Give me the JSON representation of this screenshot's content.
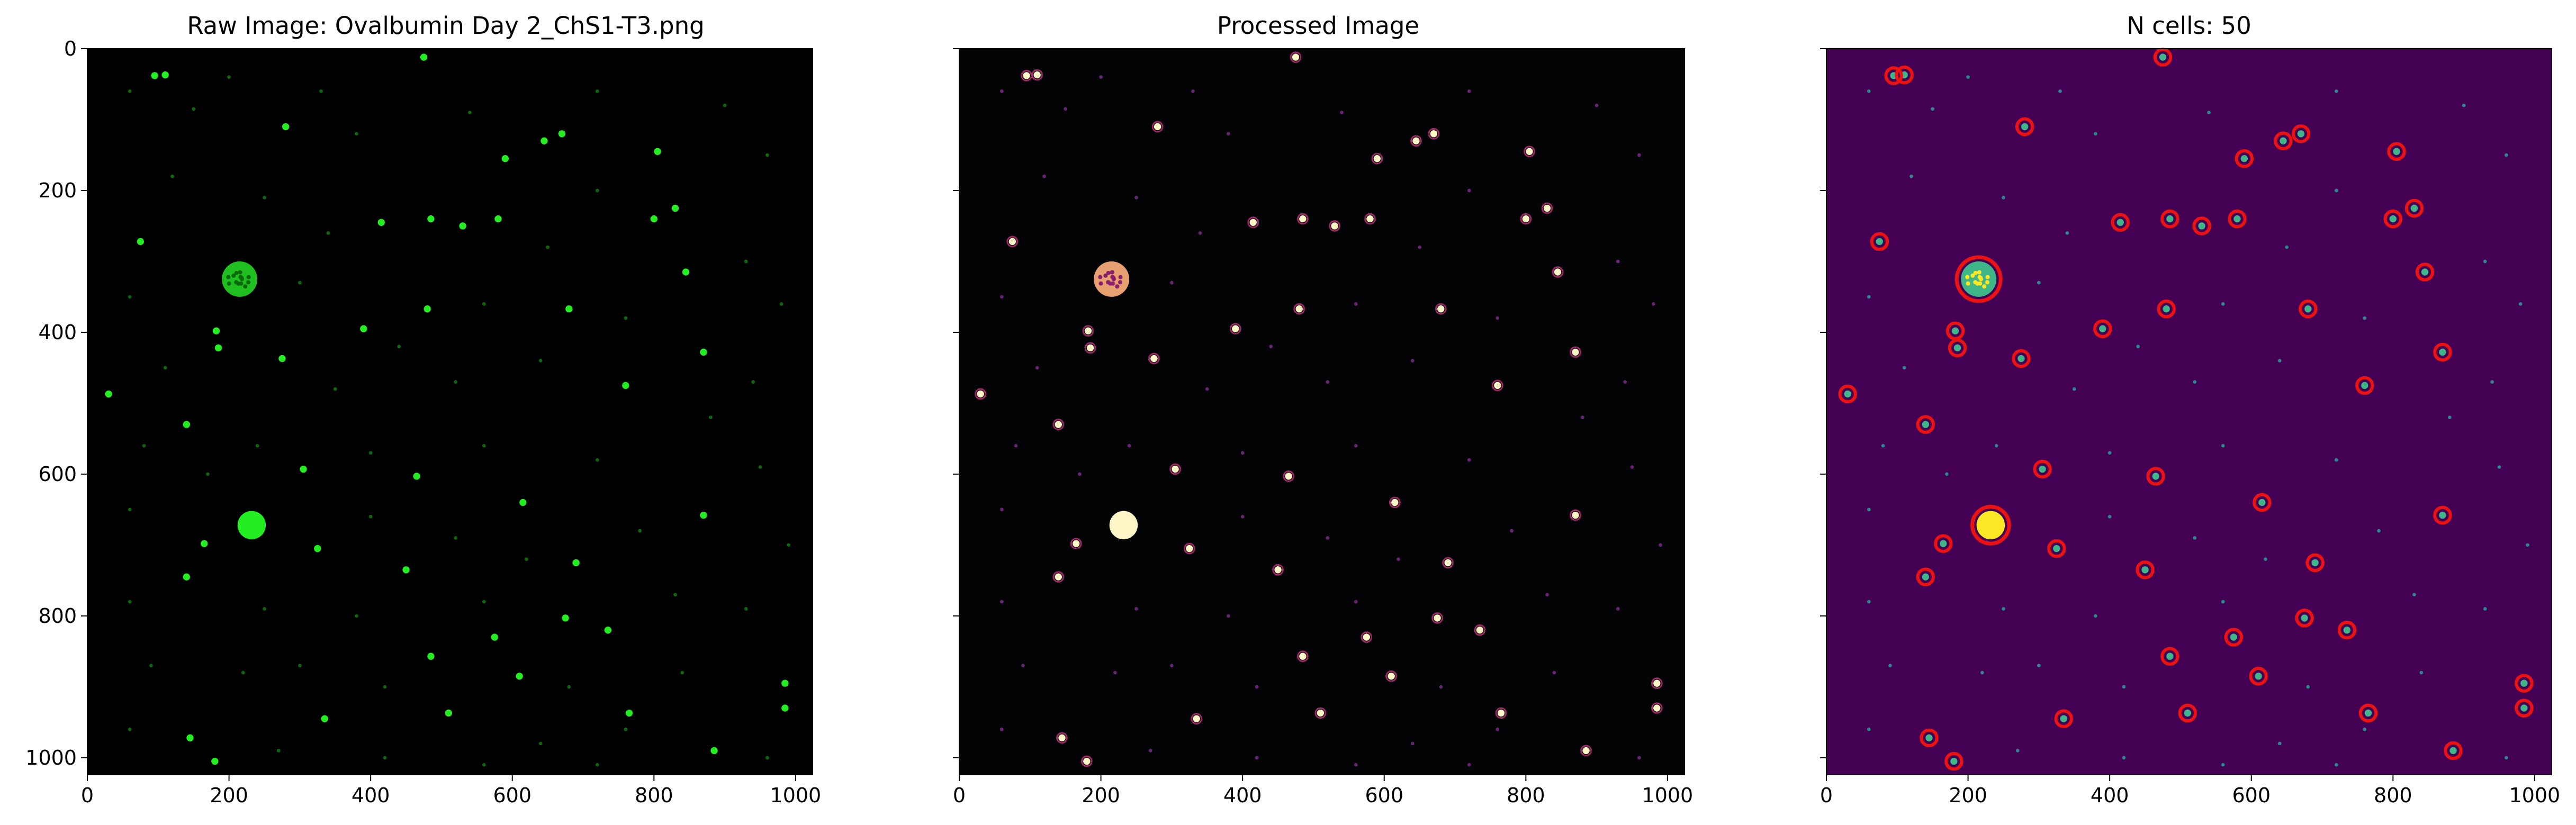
{
  "colors": {
    "raw_background": "#000000",
    "raw_cell": "#22ee22",
    "processed_background": "#040306",
    "processed_low": "#7a2a8a",
    "processed_high": "#fcf6c6",
    "overlay_background": "#440154",
    "overlay_cell": "#2a9d9a",
    "overlay_hot": "#fde725",
    "circle": "#ee1111",
    "axis": "#000000"
  },
  "panels": [
    {
      "title": "Raw Image: Ovalbumin Day 2_ChS1-T3.png",
      "colormap": "green"
    },
    {
      "title": "Processed Image",
      "colormap": "magma"
    },
    {
      "title": "N cells: 50",
      "colormap": "viridis"
    }
  ],
  "axes": {
    "x_ticks": [
      "0",
      "200",
      "400",
      "600",
      "800",
      "1000"
    ],
    "y_ticks": [
      "0",
      "200",
      "400",
      "600",
      "800",
      "1000"
    ]
  },
  "chart_data": {
    "type": "scatter",
    "image_extent": {
      "x": [
        0,
        1024
      ],
      "y": [
        0,
        1024
      ]
    },
    "y_inverted": true,
    "large_cells": [
      {
        "x": 215,
        "y": 325,
        "r": 25,
        "texture": "speckled"
      },
      {
        "x": 232,
        "y": 672,
        "r": 20,
        "texture": "solid"
      }
    ],
    "detected_cells": [
      {
        "x": 95,
        "y": 38
      },
      {
        "x": 110,
        "y": 37
      },
      {
        "x": 475,
        "y": 12
      },
      {
        "x": 280,
        "y": 110
      },
      {
        "x": 590,
        "y": 155
      },
      {
        "x": 645,
        "y": 130
      },
      {
        "x": 670,
        "y": 120
      },
      {
        "x": 805,
        "y": 145
      },
      {
        "x": 75,
        "y": 272
      },
      {
        "x": 415,
        "y": 245
      },
      {
        "x": 485,
        "y": 240
      },
      {
        "x": 530,
        "y": 250
      },
      {
        "x": 580,
        "y": 240
      },
      {
        "x": 800,
        "y": 240
      },
      {
        "x": 830,
        "y": 225
      },
      {
        "x": 845,
        "y": 315
      },
      {
        "x": 480,
        "y": 367
      },
      {
        "x": 680,
        "y": 367
      },
      {
        "x": 390,
        "y": 395
      },
      {
        "x": 182,
        "y": 398
      },
      {
        "x": 185,
        "y": 422
      },
      {
        "x": 275,
        "y": 437
      },
      {
        "x": 870,
        "y": 428
      },
      {
        "x": 30,
        "y": 487
      },
      {
        "x": 760,
        "y": 475
      },
      {
        "x": 140,
        "y": 530
      },
      {
        "x": 305,
        "y": 593
      },
      {
        "x": 465,
        "y": 603
      },
      {
        "x": 615,
        "y": 640
      },
      {
        "x": 870,
        "y": 658
      },
      {
        "x": 165,
        "y": 698
      },
      {
        "x": 325,
        "y": 705
      },
      {
        "x": 690,
        "y": 725
      },
      {
        "x": 140,
        "y": 745
      },
      {
        "x": 450,
        "y": 735
      },
      {
        "x": 675,
        "y": 803
      },
      {
        "x": 735,
        "y": 820
      },
      {
        "x": 575,
        "y": 830
      },
      {
        "x": 485,
        "y": 857
      },
      {
        "x": 610,
        "y": 885
      },
      {
        "x": 985,
        "y": 895
      },
      {
        "x": 985,
        "y": 930
      },
      {
        "x": 510,
        "y": 937
      },
      {
        "x": 765,
        "y": 937
      },
      {
        "x": 335,
        "y": 945
      },
      {
        "x": 145,
        "y": 972
      },
      {
        "x": 885,
        "y": 990
      },
      {
        "x": 180,
        "y": 1005
      }
    ],
    "faint_spots": [
      {
        "x": 60,
        "y": 60
      },
      {
        "x": 150,
        "y": 85
      },
      {
        "x": 200,
        "y": 40
      },
      {
        "x": 330,
        "y": 60
      },
      {
        "x": 380,
        "y": 120
      },
      {
        "x": 540,
        "y": 90
      },
      {
        "x": 720,
        "y": 60
      },
      {
        "x": 900,
        "y": 80
      },
      {
        "x": 960,
        "y": 150
      },
      {
        "x": 120,
        "y": 180
      },
      {
        "x": 250,
        "y": 210
      },
      {
        "x": 340,
        "y": 260
      },
      {
        "x": 650,
        "y": 280
      },
      {
        "x": 720,
        "y": 200
      },
      {
        "x": 930,
        "y": 300
      },
      {
        "x": 60,
        "y": 350
      },
      {
        "x": 300,
        "y": 330
      },
      {
        "x": 560,
        "y": 360
      },
      {
        "x": 760,
        "y": 380
      },
      {
        "x": 980,
        "y": 360
      },
      {
        "x": 110,
        "y": 450
      },
      {
        "x": 350,
        "y": 480
      },
      {
        "x": 520,
        "y": 470
      },
      {
        "x": 640,
        "y": 440
      },
      {
        "x": 940,
        "y": 470
      },
      {
        "x": 80,
        "y": 560
      },
      {
        "x": 240,
        "y": 560
      },
      {
        "x": 400,
        "y": 570
      },
      {
        "x": 560,
        "y": 560
      },
      {
        "x": 720,
        "y": 580
      },
      {
        "x": 950,
        "y": 590
      },
      {
        "x": 60,
        "y": 650
      },
      {
        "x": 400,
        "y": 660
      },
      {
        "x": 520,
        "y": 690
      },
      {
        "x": 780,
        "y": 680
      },
      {
        "x": 990,
        "y": 700
      },
      {
        "x": 60,
        "y": 780
      },
      {
        "x": 250,
        "y": 790
      },
      {
        "x": 380,
        "y": 800
      },
      {
        "x": 560,
        "y": 780
      },
      {
        "x": 830,
        "y": 770
      },
      {
        "x": 930,
        "y": 790
      },
      {
        "x": 90,
        "y": 870
      },
      {
        "x": 220,
        "y": 880
      },
      {
        "x": 420,
        "y": 900
      },
      {
        "x": 680,
        "y": 900
      },
      {
        "x": 840,
        "y": 880
      },
      {
        "x": 60,
        "y": 960
      },
      {
        "x": 270,
        "y": 990
      },
      {
        "x": 420,
        "y": 1000
      },
      {
        "x": 640,
        "y": 980
      },
      {
        "x": 720,
        "y": 1010
      },
      {
        "x": 960,
        "y": 1000
      },
      {
        "x": 560,
        "y": 1010
      },
      {
        "x": 170,
        "y": 600
      },
      {
        "x": 880,
        "y": 520
      },
      {
        "x": 440,
        "y": 420
      },
      {
        "x": 620,
        "y": 720
      },
      {
        "x": 300,
        "y": 870
      },
      {
        "x": 760,
        "y": 960
      }
    ]
  }
}
